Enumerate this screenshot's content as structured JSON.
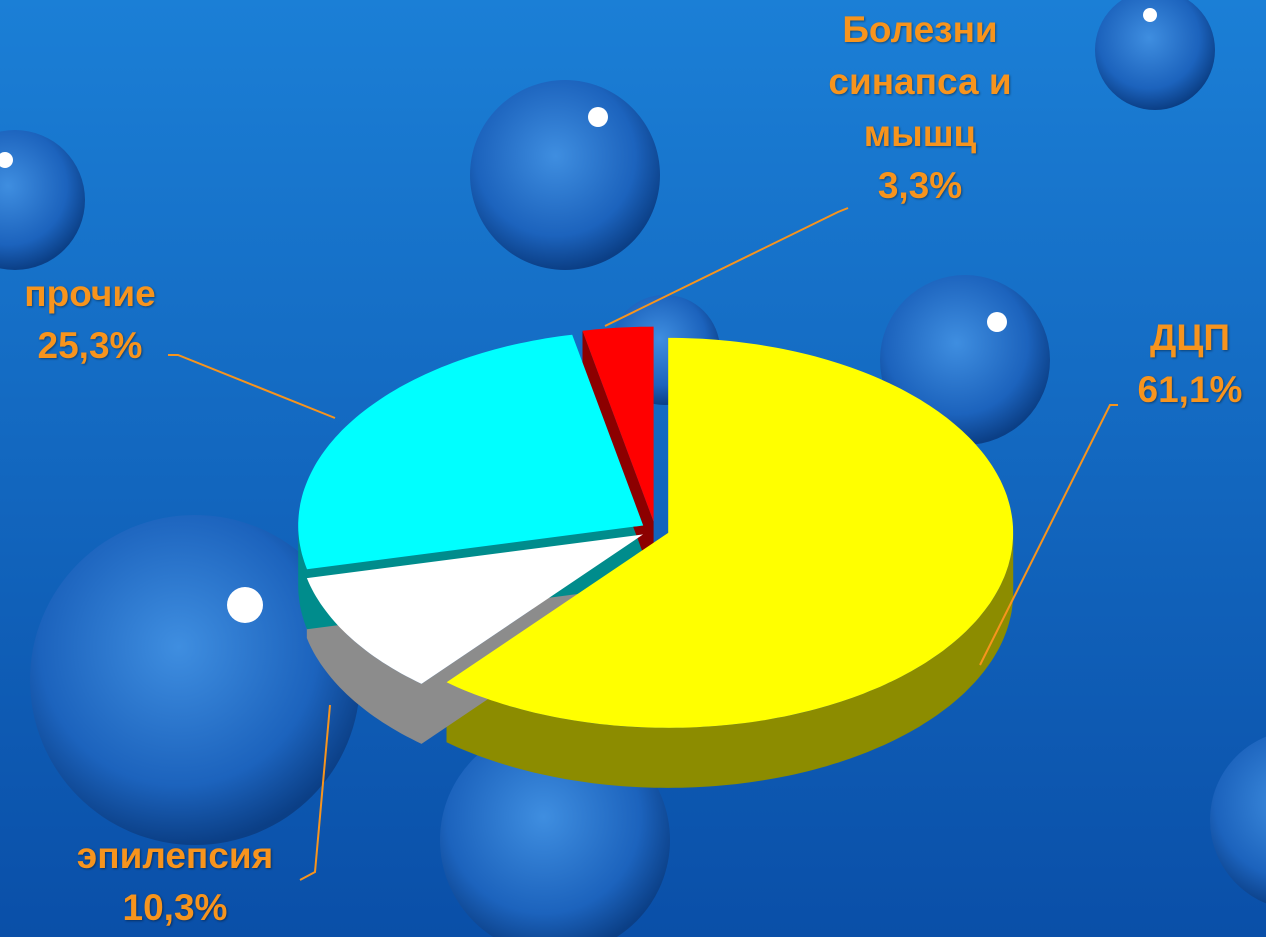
{
  "chart_data": {
    "type": "pie",
    "categories": [
      "ДЦП",
      "эпилепсия",
      "прочие",
      "Болезни синапса и мышц"
    ],
    "values": [
      61.1,
      10.3,
      25.3,
      3.3
    ],
    "value_labels": [
      "61,1%",
      "10,3%",
      "25,3%",
      "3,3%"
    ],
    "colors": [
      "#ffff00",
      "#ffffff",
      "#00ffff",
      "#ff0000"
    ]
  }
}
